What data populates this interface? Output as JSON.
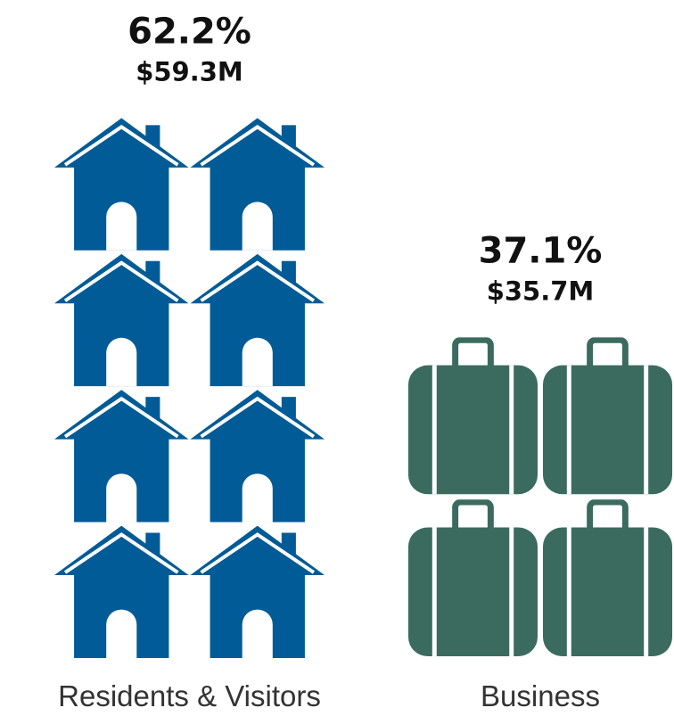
{
  "chart_data": {
    "type": "pictograph",
    "categories": [
      "Residents & Visitors",
      "Business"
    ],
    "colors": [
      "#005b96",
      "#3a6b5e"
    ],
    "series": [
      {
        "values": [
          62.2,
          37.1
        ],
        "value_labels": [
          "62.2%",
          "37.1%"
        ]
      },
      {
        "values": [
          59300000,
          35700000
        ],
        "value_labels": [
          "$59.3M",
          "$35.7M"
        ]
      }
    ]
  }
}
